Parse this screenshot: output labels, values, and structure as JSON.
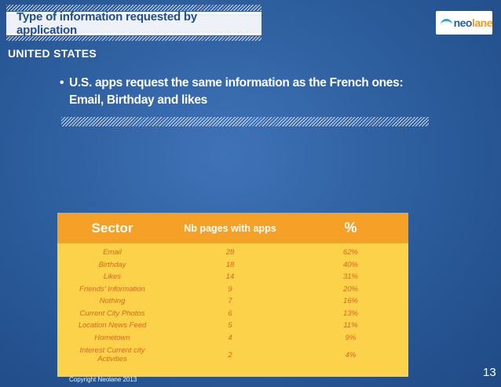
{
  "header": {
    "title": "Type of information requested by application",
    "logo_text_main": "neo",
    "logo_text_accent": "lane"
  },
  "region": "UNITED STATES",
  "bullet": {
    "line1": "U.S. apps request the same information as the French ones:",
    "line2": "Email, Birthday and likes"
  },
  "table": {
    "headers": [
      "Sector",
      "Nb pages with apps",
      "%"
    ],
    "rows": [
      {
        "sector": "Email",
        "pages": "28",
        "percent": "62%"
      },
      {
        "sector": "Birthday",
        "pages": "18",
        "percent": "40%"
      },
      {
        "sector": "Likes",
        "pages": "14",
        "percent": "31%"
      },
      {
        "sector": "Friends' Information",
        "pages": "9",
        "percent": "20%"
      },
      {
        "sector": "Nothing",
        "pages": "7",
        "percent": "16%"
      },
      {
        "sector": "Current City Photos",
        "pages": "6",
        "percent": "13%"
      },
      {
        "sector": "Location News Feed",
        "pages": "5",
        "percent": "11%"
      },
      {
        "sector": "Hometown",
        "pages": "4",
        "percent": "9%"
      },
      {
        "sector": "Interest Current city Activities",
        "pages": "2",
        "percent": "4%"
      }
    ]
  },
  "footer": {
    "copyright": "Copyright Neolane 2013",
    "page_number": "13"
  },
  "colors": {
    "background": "#2e5f9f",
    "table_header": "#f5a127",
    "table_body": "#fbd24a",
    "table_text": "#d4691c"
  }
}
